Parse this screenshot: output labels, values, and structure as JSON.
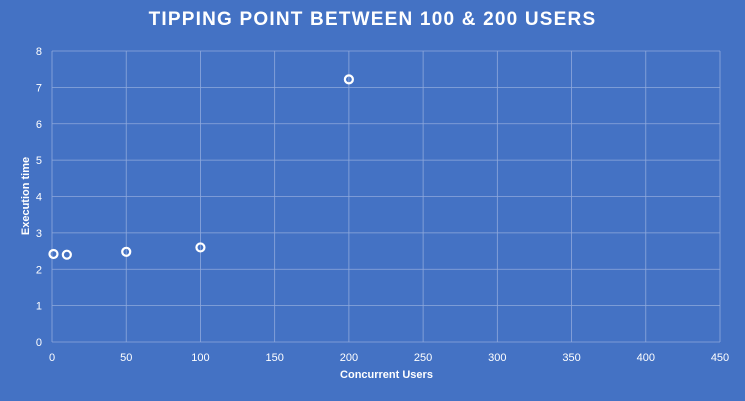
{
  "chart_data": {
    "type": "scatter",
    "title": "TIPPING POINT BETWEEN 100 & 200 USERS",
    "xlabel": "Concurrent  Users",
    "ylabel": "Execution time",
    "xlim": [
      0,
      450
    ],
    "ylim": [
      0,
      8
    ],
    "x_ticks": [
      0,
      50,
      100,
      150,
      200,
      250,
      300,
      350,
      400,
      450
    ],
    "y_ticks": [
      0,
      1,
      2,
      3,
      4,
      5,
      6,
      7,
      8
    ],
    "grid": true,
    "legend": "none",
    "points": [
      {
        "x": 1,
        "y": 2.42
      },
      {
        "x": 10,
        "y": 2.4
      },
      {
        "x": 50,
        "y": 2.48
      },
      {
        "x": 100,
        "y": 2.6
      },
      {
        "x": 200,
        "y": 7.22
      }
    ],
    "colors": {
      "background": "#4472C4",
      "gridline": "#8FA9DC",
      "marker_stroke": "#FFFFFF",
      "text": "#FFFFFF"
    }
  }
}
